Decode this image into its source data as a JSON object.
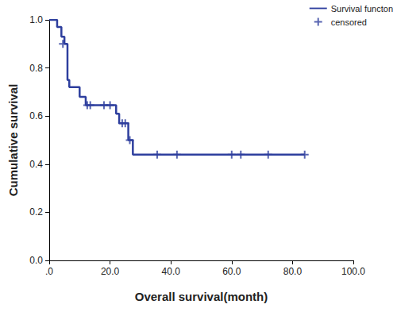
{
  "chart_data": {
    "type": "line",
    "xlabel": "Overall survival(month)",
    "ylabel": "Cumulative survival",
    "xlim": [
      0,
      100
    ],
    "xticks": [
      {
        "value": 0,
        "label": ".0"
      },
      {
        "value": 20,
        "label": "20.0"
      },
      {
        "value": 40,
        "label": "40.0"
      },
      {
        "value": 60,
        "label": "60.0"
      },
      {
        "value": 80,
        "label": "80.0"
      },
      {
        "value": 100,
        "label": "100.0"
      }
    ],
    "ylim": [
      0,
      1
    ],
    "yticks": [
      {
        "value": 0,
        "label": "0.0"
      },
      0.2,
      0.4,
      0.6,
      0.8,
      {
        "value": 1,
        "label": "1.0"
      }
    ],
    "grid": false,
    "legend": "upper right",
    "series": [
      {
        "name": "Survival functon",
        "color": "#2e3f9e",
        "line_style": "step",
        "x": [
          0,
          2.6,
          4.0,
          5.0,
          6.0,
          6.6,
          10.0,
          12.0,
          22.0,
          23.0,
          26.0,
          27.5,
          84
        ],
        "values": [
          1.0,
          0.97,
          0.93,
          0.9,
          0.75,
          0.72,
          0.68,
          0.645,
          0.61,
          0.57,
          0.5,
          0.44,
          0.44
        ]
      },
      {
        "name": "censored",
        "type": "scatter",
        "marker": "+",
        "color": "#2e3f9e",
        "x": [
          4.5,
          12.5,
          13.5,
          18,
          20,
          24,
          25,
          26.5,
          35.5,
          42,
          60,
          63,
          72,
          84
        ],
        "values": [
          0.9,
          0.645,
          0.645,
          0.645,
          0.645,
          0.57,
          0.57,
          0.5,
          0.44,
          0.44,
          0.44,
          0.44,
          0.44,
          0.44
        ]
      }
    ]
  }
}
